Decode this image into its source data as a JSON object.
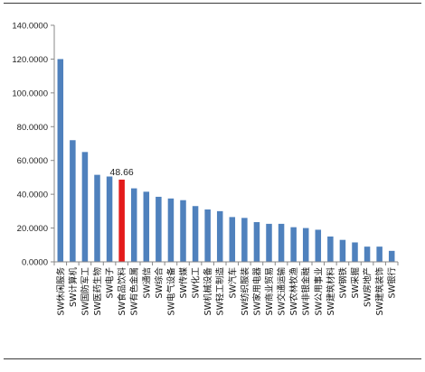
{
  "chart_data": {
    "type": "bar",
    "title": "",
    "xlabel": "",
    "ylabel": "",
    "ylim": [
      0,
      140
    ],
    "yticks": [
      "0.0000",
      "20.0000",
      "40.0000",
      "60.0000",
      "80.0000",
      "100.0000",
      "120.0000",
      "140.0000"
    ],
    "grid": false,
    "legend": "none",
    "categories": [
      "SW休闲服务",
      "SW计算机",
      "SW国防军工",
      "SW医药生物",
      "SW电子",
      "SW食品饮料",
      "SW有色金属",
      "SW通信",
      "SW综合",
      "SW电气设备",
      "SW传媒",
      "SW化工",
      "SW机械设备",
      "SW轻工制造",
      "SW汽车",
      "SW纺织服装",
      "SW家用电器",
      "SW商业贸易",
      "SW交通运输",
      "SW农林牧渔",
      "SW非银金融",
      "SW公用事业",
      "SW建筑材料",
      "SW钢铁",
      "SW采掘",
      "SW房地产",
      "SW建筑装饰",
      "SW银行"
    ],
    "values": [
      120.0,
      72.0,
      65.0,
      51.5,
      50.5,
      48.66,
      43.5,
      41.5,
      38.5,
      37.5,
      36.5,
      33.0,
      31.0,
      30.0,
      26.5,
      26.0,
      23.5,
      22.5,
      22.5,
      20.5,
      20.0,
      19.0,
      15.0,
      13.0,
      11.5,
      9.0,
      9.0,
      6.5
    ],
    "highlight_index": 5,
    "data_labels": [
      {
        "index": 5,
        "text": "48.66"
      }
    ],
    "colors": {
      "bar": "#4f81bd",
      "highlight": "#e31b1b",
      "axis": "#888888"
    }
  }
}
